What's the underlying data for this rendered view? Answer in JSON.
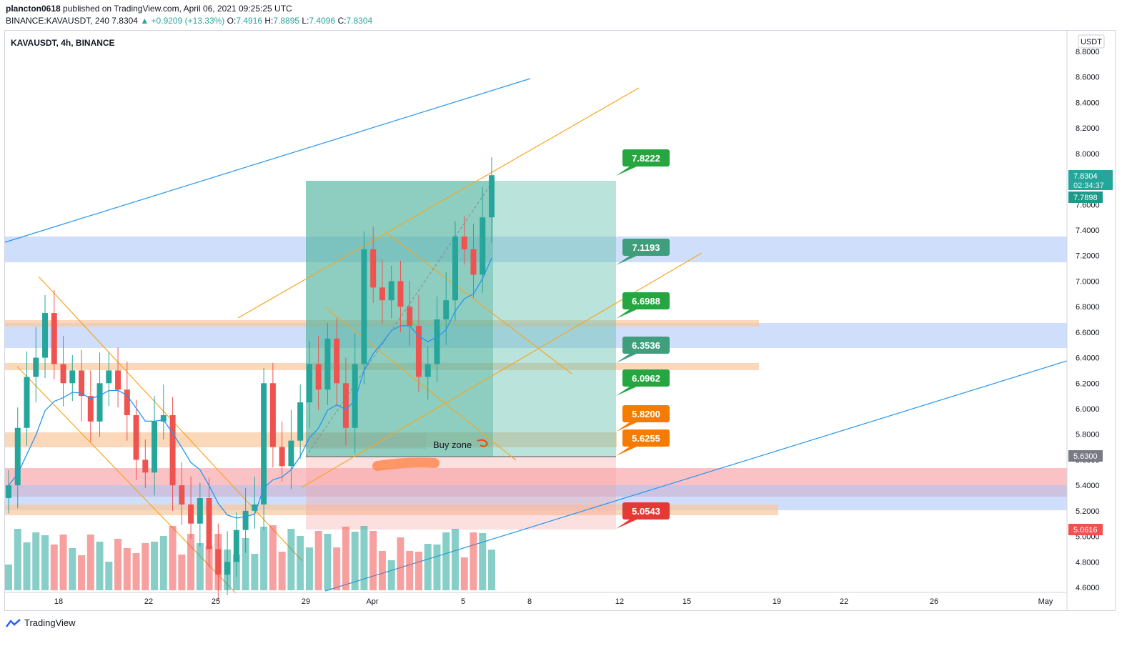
{
  "header": {
    "author": "plancton0618",
    "published": "published on TradingView.com, April 06, 2021 09:25:25 UTC",
    "symbol": "BINANCE:KAVAUSDT, 240",
    "last": "7.8304",
    "change": "+0.9209 (+13.33%)",
    "o_label": "O:",
    "o": "7.4916",
    "h_label": "H:",
    "h": "7.8895",
    "l_label": "L:",
    "l": "7.4096",
    "c_label": "C:",
    "c": "7.8304"
  },
  "chart": {
    "symbol_label": "KAVAUSDT, 4h, BINANCE",
    "currency": "USDT",
    "buy_zone_label": "Buy zone"
  },
  "price_tags": {
    "last": "7.8304",
    "countdown": "02:34:37",
    "ma": "7.7898",
    "buy_line": "5.6300",
    "low_tag": "5.0616"
  },
  "callouts": [
    "7.8222",
    "7.1193",
    "6.6988",
    "6.3536",
    "6.0962",
    "5.8200",
    "5.6255",
    "5.0543"
  ],
  "footer": {
    "brand": "TradingView"
  },
  "colors": {
    "up": "#26a69a",
    "down": "#ef5350",
    "ma": "#2196f3",
    "orange_line": "#f5a623",
    "blue_line": "#2196f3",
    "callout_green": "#26a641",
    "callout_teal": "#3f9e7c",
    "callout_orange": "#f57c00",
    "callout_red": "#e53935"
  },
  "chart_data": {
    "type": "candlestick",
    "y_ticks": [
      "8.8000",
      "8.6000",
      "8.4000",
      "8.2000",
      "8.0000",
      "7.8000",
      "7.6000",
      "7.4000",
      "7.2000",
      "7.0000",
      "6.8000",
      "6.6000",
      "6.4000",
      "6.2000",
      "6.0000",
      "5.8000",
      "5.6000",
      "5.4000",
      "5.2000",
      "5.0000",
      "4.8000",
      "4.6000"
    ],
    "x_ticks": [
      "18",
      "22",
      "25",
      "29",
      "Apr",
      "5",
      "8",
      "12",
      "15",
      "19",
      "22",
      "26",
      "May"
    ],
    "ylim": [
      4.6,
      8.8
    ],
    "zones": [
      {
        "name": "resistance",
        "low": 7.16,
        "high": 7.36
      },
      {
        "name": "mid",
        "low": 6.48,
        "high": 6.68
      },
      {
        "name": "support",
        "low": 5.22,
        "high": 5.42
      }
    ],
    "levels": [
      7.8222,
      7.1193,
      6.6988,
      6.3536,
      6.0962,
      5.82,
      5.6255,
      5.0543
    ],
    "close_series": [
      5.4,
      5.85,
      6.25,
      6.4,
      6.75,
      6.35,
      6.2,
      6.3,
      6.1,
      5.9,
      6.2,
      6.3,
      6.15,
      5.95,
      5.6,
      5.5,
      5.9,
      5.95,
      5.4,
      5.25,
      5.1,
      5.3,
      4.9,
      4.7,
      4.8,
      5.05,
      5.2,
      5.25,
      6.2,
      5.7,
      5.55,
      5.75,
      6.05,
      6.35,
      6.15,
      6.55,
      6.2,
      5.85,
      6.35,
      7.25,
      6.95,
      6.85,
      7.0,
      6.8,
      6.65,
      6.25,
      6.35,
      6.7,
      6.85,
      7.35,
      7.25,
      7.05,
      7.5,
      7.83
    ]
  }
}
